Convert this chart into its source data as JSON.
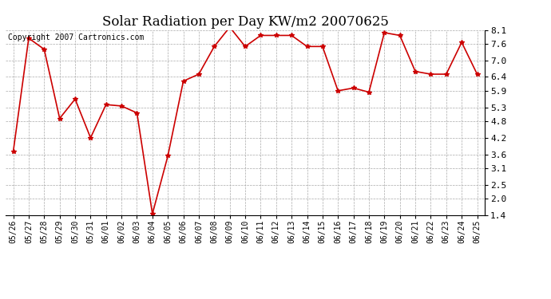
{
  "title": "Solar Radiation per Day KW/m2 20070625",
  "copyright_text": "Copyright 2007 Cartronics.com",
  "dates": [
    "05/26",
    "05/27",
    "05/28",
    "05/29",
    "05/30",
    "05/31",
    "06/01",
    "06/02",
    "06/03",
    "06/04",
    "06/05",
    "06/06",
    "06/07",
    "06/08",
    "06/09",
    "06/10",
    "06/11",
    "06/12",
    "06/13",
    "06/14",
    "06/15",
    "06/16",
    "06/17",
    "06/18",
    "06/19",
    "06/20",
    "06/21",
    "06/22",
    "06/23",
    "06/24",
    "06/25"
  ],
  "values": [
    3.7,
    7.8,
    7.4,
    4.9,
    5.6,
    4.2,
    5.4,
    5.35,
    5.1,
    1.45,
    3.55,
    6.25,
    6.5,
    7.5,
    8.2,
    7.5,
    7.9,
    7.9,
    7.9,
    7.5,
    7.5,
    5.9,
    6.0,
    5.85,
    8.0,
    7.9,
    6.6,
    6.5,
    6.5,
    7.65,
    6.5
  ],
  "line_color": "#cc0000",
  "marker": "*",
  "marker_size": 4,
  "bg_color": "#ffffff",
  "grid_color": "#aaaaaa",
  "ylim": [
    1.4,
    8.1
  ],
  "yticks": [
    1.4,
    2.0,
    2.5,
    3.1,
    3.6,
    4.2,
    4.8,
    5.3,
    5.9,
    6.4,
    7.0,
    7.6,
    8.1
  ],
  "title_fontsize": 12,
  "copyright_fontsize": 7,
  "tick_fontsize": 7,
  "ytick_fontsize": 8
}
